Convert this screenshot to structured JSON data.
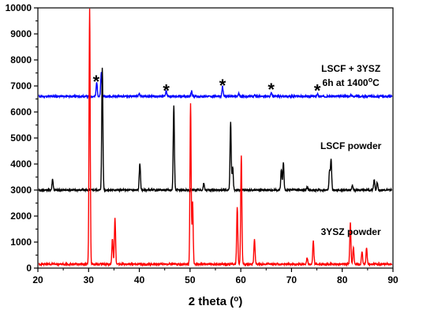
{
  "chart_data": {
    "type": "line",
    "xlabel": "2 theta (°)",
    "xlabel_parts": {
      "pre": "2 theta (",
      "sup": "o",
      "post": ")"
    },
    "ylabel": "",
    "xlim": [
      20,
      90
    ],
    "ylim": [
      0,
      10000
    ],
    "x_ticks": [
      20,
      30,
      40,
      50,
      60,
      70,
      80,
      90
    ],
    "y_ticks": [
      0,
      1000,
      2000,
      3000,
      4000,
      5000,
      6000,
      7000,
      8000,
      9000,
      10000
    ],
    "grid": false,
    "series": [
      {
        "color": "#0000ff",
        "baseline": 6600,
        "peaks": [
          [
            31.6,
            7150
          ],
          [
            32.5,
            7500
          ],
          [
            40.0,
            6700
          ],
          [
            45.3,
            6800
          ],
          [
            50.3,
            6800
          ],
          [
            56.4,
            7000
          ],
          [
            59.6,
            6700
          ],
          [
            62.8,
            6650
          ],
          [
            66.0,
            6750
          ],
          [
            75.1,
            6700
          ],
          [
            81.7,
            6650
          ]
        ]
      },
      {
        "color": "#000000",
        "baseline": 3000,
        "peaks": [
          [
            22.9,
            3420
          ],
          [
            32.7,
            7700
          ],
          [
            40.1,
            4050
          ],
          [
            46.8,
            6280
          ],
          [
            52.7,
            3250
          ],
          [
            58.0,
            5620
          ],
          [
            58.4,
            3900
          ],
          [
            68.0,
            3800
          ],
          [
            68.4,
            4050
          ],
          [
            73.1,
            3120
          ],
          [
            77.5,
            3750
          ],
          [
            77.8,
            4150
          ],
          [
            82.0,
            3180
          ],
          [
            86.3,
            3400
          ],
          [
            86.9,
            3300
          ]
        ]
      },
      {
        "color": "#ff0000",
        "baseline": 150,
        "peaks": [
          [
            30.2,
            10000
          ],
          [
            34.7,
            1150
          ],
          [
            35.2,
            1950
          ],
          [
            50.1,
            6350
          ],
          [
            50.5,
            2550
          ],
          [
            59.3,
            2350
          ],
          [
            60.1,
            4350
          ],
          [
            62.7,
            1150
          ],
          [
            73.1,
            400
          ],
          [
            74.3,
            1050
          ],
          [
            81.6,
            1750
          ],
          [
            82.2,
            800
          ],
          [
            83.9,
            650
          ],
          [
            84.8,
            750
          ]
        ]
      }
    ],
    "annotations": [
      {
        "id": "lscf-3ysz",
        "line1": "LSCF + 3YSZ",
        "line2_pre": "6h at 1400",
        "line2_sup": "o",
        "line2_post": "C",
        "x": 81.7,
        "y": 7550
      },
      {
        "id": "lscf-powder",
        "text": "LSCF powder",
        "x": 81.7,
        "y": 4570
      },
      {
        "id": "ysz-powder",
        "text": "3YSZ powder",
        "x": 81.7,
        "y": 1280
      }
    ],
    "asterisks": [
      {
        "symbol": "*",
        "x": 31.5,
        "y": 7300
      },
      {
        "symbol": "*",
        "x": 45.3,
        "y": 6950
      },
      {
        "symbol": "*",
        "x": 56.4,
        "y": 7150
      },
      {
        "symbol": "*",
        "x": 66.0,
        "y": 7000
      },
      {
        "symbol": "*",
        "x": 75.1,
        "y": 6950
      }
    ]
  }
}
